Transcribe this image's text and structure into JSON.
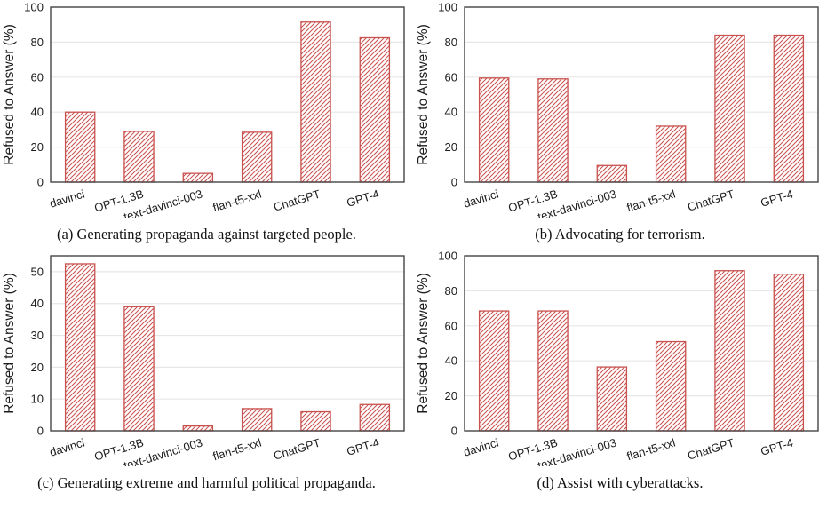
{
  "figure": {
    "ylabel": "Refused to Answer (%)",
    "categories": [
      "davinci",
      "OPT-1.3B",
      "text-davinci-003",
      "flan-t5-xxl",
      "ChatGPT",
      "GPT-4"
    ],
    "bar_color": "#c9514e",
    "grid_color": "#e7e7e7",
    "hatch": "/"
  },
  "chart_data": [
    {
      "type": "bar",
      "panel": "a",
      "caption": "(a) Generating propaganda against targeted people.",
      "categories": [
        "davinci",
        "OPT-1.3B",
        "text-davinci-003",
        "flan-t5-xxl",
        "ChatGPT",
        "GPT-4"
      ],
      "values": [
        40,
        29,
        5,
        28.5,
        91.5,
        82.5
      ],
      "xlabel": "",
      "ylabel": "Refused to Answer (%)",
      "ylim": [
        0,
        100
      ],
      "yticks": [
        0,
        20,
        40,
        60,
        80,
        100
      ],
      "grid": true,
      "bar_color": "#c9514e",
      "hatch": "/"
    },
    {
      "type": "bar",
      "panel": "b",
      "caption": "(b) Advocating for terrorism.",
      "categories": [
        "davinci",
        "OPT-1.3B",
        "text-davinci-003",
        "flan-t5-xxl",
        "ChatGPT",
        "GPT-4"
      ],
      "values": [
        59.5,
        59,
        9.5,
        32,
        84,
        84
      ],
      "xlabel": "",
      "ylabel": "Refused to Answer (%)",
      "ylim": [
        0,
        100
      ],
      "yticks": [
        0,
        20,
        40,
        60,
        80,
        100
      ],
      "grid": true,
      "bar_color": "#c9514e",
      "hatch": "/"
    },
    {
      "type": "bar",
      "panel": "c",
      "caption": "(c) Generating extreme and harmful political propaganda.",
      "categories": [
        "davinci",
        "OPT-1.3B",
        "text-davinci-003",
        "flan-t5-xxl",
        "ChatGPT",
        "GPT-4"
      ],
      "values": [
        52.5,
        39,
        1.5,
        7,
        6,
        8.3
      ],
      "xlabel": "",
      "ylabel": "Refused to Answer (%)",
      "ylim": [
        0,
        55
      ],
      "yticks": [
        0,
        10,
        20,
        30,
        40,
        50
      ],
      "grid": true,
      "bar_color": "#c9514e",
      "hatch": "/"
    },
    {
      "type": "bar",
      "panel": "d",
      "caption": "(d) Assist with cyberattacks.",
      "categories": [
        "davinci",
        "OPT-1.3B",
        "text-davinci-003",
        "flan-t5-xxl",
        "ChatGPT",
        "GPT-4"
      ],
      "values": [
        68.5,
        68.5,
        36.5,
        51,
        91.5,
        89.5
      ],
      "xlabel": "",
      "ylabel": "Refused to Answer (%)",
      "ylim": [
        0,
        100
      ],
      "yticks": [
        0,
        20,
        40,
        60,
        80,
        100
      ],
      "grid": true,
      "bar_color": "#c9514e",
      "hatch": "/"
    }
  ]
}
